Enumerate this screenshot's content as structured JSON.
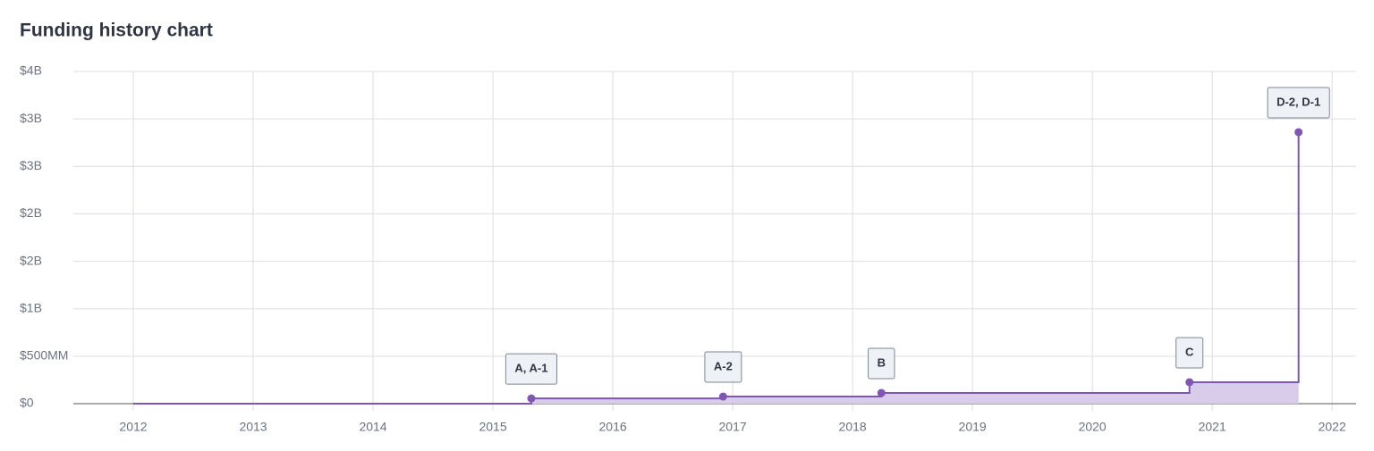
{
  "chart_data": {
    "type": "step-area",
    "title": "Funding history chart",
    "x": [
      2012,
      2015.32,
      2016.92,
      2018.24,
      2020.81,
      2021.72
    ],
    "values": [
      0,
      55000000,
      75000000,
      113000000,
      226000000,
      2860000000
    ],
    "point_labels": [
      null,
      "A, A-1",
      "A-2",
      "B",
      "C",
      "D-2, D-1"
    ],
    "color": "#7f56b4",
    "fill_color": "#d9cbea",
    "xlim": [
      2011.5,
      2022.2
    ],
    "xticks": [
      2012,
      2013,
      2014,
      2015,
      2016,
      2017,
      2018,
      2019,
      2020,
      2021,
      2022
    ],
    "ylim": [
      0,
      3500000000
    ],
    "yticks": [
      {
        "value": 0,
        "label": "$0"
      },
      {
        "value": 500000000,
        "label": "$500MM"
      },
      {
        "value": 1000000000,
        "label": "$1B"
      },
      {
        "value": 1500000000,
        "label": "$2B"
      },
      {
        "value": 2000000000,
        "label": "$2B"
      },
      {
        "value": 2500000000,
        "label": "$3B"
      },
      {
        "value": 3000000000,
        "label": "$3B"
      },
      {
        "value": 3500000000,
        "label": "$4B"
      }
    ],
    "grid": true
  }
}
